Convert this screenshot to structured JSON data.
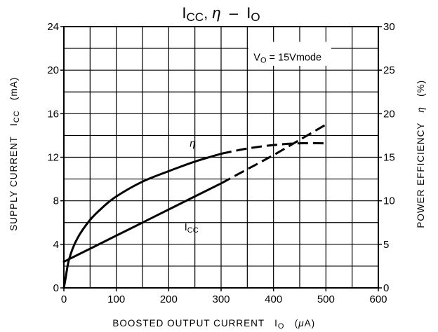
{
  "chart_data": {
    "type": "line",
    "title": {
      "parts": [
        {
          "text": "I",
          "sub": "CC"
        },
        {
          "text": ", "
        },
        {
          "text": "η",
          "italic": true
        },
        {
          "text": "  –  "
        },
        {
          "text": "I",
          "sub": "O"
        }
      ]
    },
    "xlabel": {
      "text": "BOOSTED OUTPUT CURRENT   I",
      "sub": "O",
      "unit_pre": "   (",
      "unit_greek": "μ",
      "unit_post": "A)"
    },
    "ylabel_left": {
      "text": "SUPPLY CURRENT   I",
      "sub": "CC",
      "unit": "   (mA)"
    },
    "ylabel_right": {
      "text": "POWER EFFICIENCY   ",
      "greek": "η",
      "unit": "   (%)"
    },
    "xlim": [
      0,
      600
    ],
    "ylim_left": [
      0,
      24
    ],
    "ylim_right": [
      0,
      30
    ],
    "x_ticks": [
      "0",
      "100",
      "200",
      "300",
      "400",
      "500",
      "600"
    ],
    "y_ticks_left": [
      "0",
      "4",
      "8",
      "12",
      "16",
      "20",
      "24"
    ],
    "y_ticks_right": [
      "0",
      "5",
      "10",
      "15",
      "20",
      "25",
      "30"
    ],
    "grid": true,
    "annotation": {
      "text": "V",
      "sub": "O",
      "rest": " = 15Vmode"
    },
    "series": [
      {
        "name": "I",
        "name_sub": "CC",
        "axis": "left",
        "solid_end_x": 300,
        "points": [
          [
            0,
            2.4
          ],
          [
            50,
            3.6
          ],
          [
            100,
            4.8
          ],
          [
            150,
            6.0
          ],
          [
            200,
            7.2
          ],
          [
            250,
            8.4
          ],
          [
            300,
            9.6
          ],
          [
            350,
            10.9
          ],
          [
            400,
            12.2
          ],
          [
            450,
            13.6
          ],
          [
            500,
            15.0
          ]
        ]
      },
      {
        "name": "η",
        "axis": "right",
        "solid_end_x": 300,
        "points": [
          [
            0,
            0
          ],
          [
            3,
            1
          ],
          [
            10,
            3.3
          ],
          [
            25,
            5.6
          ],
          [
            50,
            7.8
          ],
          [
            75,
            9.3
          ],
          [
            100,
            10.5
          ],
          [
            150,
            12.2
          ],
          [
            200,
            13.4
          ],
          [
            250,
            14.5
          ],
          [
            300,
            15.4
          ],
          [
            350,
            16.0
          ],
          [
            400,
            16.4
          ],
          [
            450,
            16.6
          ],
          [
            500,
            16.6
          ]
        ]
      }
    ]
  }
}
